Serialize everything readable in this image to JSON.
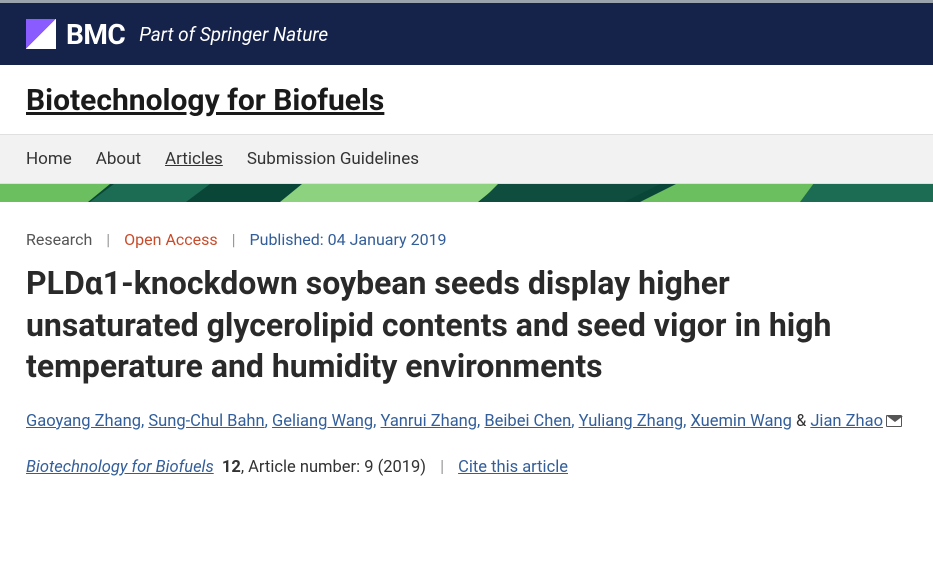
{
  "brand": {
    "name": "BMC",
    "tagline": "Part of Springer Nature"
  },
  "journal": {
    "title": "Biotechnology for Biofuels"
  },
  "nav": {
    "items": [
      {
        "label": "Home",
        "active": false
      },
      {
        "label": "About",
        "active": false
      },
      {
        "label": "Articles",
        "active": true
      },
      {
        "label": "Submission Guidelines",
        "active": false
      }
    ]
  },
  "article": {
    "type": "Research",
    "access": "Open Access",
    "published": "Published: 04 January 2019",
    "title": "PLDα1-knockdown soybean seeds display higher unsaturated glycerolipid contents and seed vigor in high temperature and humidity environments",
    "authors": [
      "Gaoyang Zhang",
      "Sung-Chul Bahn",
      "Geliang Wang",
      "Yanrui Zhang",
      "Beibei Chen",
      "Yuliang Zhang",
      "Xuemin Wang",
      "Jian Zhao"
    ],
    "corresponding_index": 7,
    "citation": {
      "journal": "Biotechnology for Biofuels",
      "volume": "12",
      "article_number_label": ", Article number: 9 (2019)",
      "cite_label": "Cite this article"
    }
  },
  "colors": {
    "header_bg": "#15224a",
    "open_access": "#c94b2a",
    "link_blue": "#335e99",
    "nav_bg": "#f2f2f2",
    "geo_dark": "#0a4638",
    "geo_mid": "#1c6b53",
    "geo_light": "#6bbf5e",
    "geo_pale": "#8dd37f"
  }
}
